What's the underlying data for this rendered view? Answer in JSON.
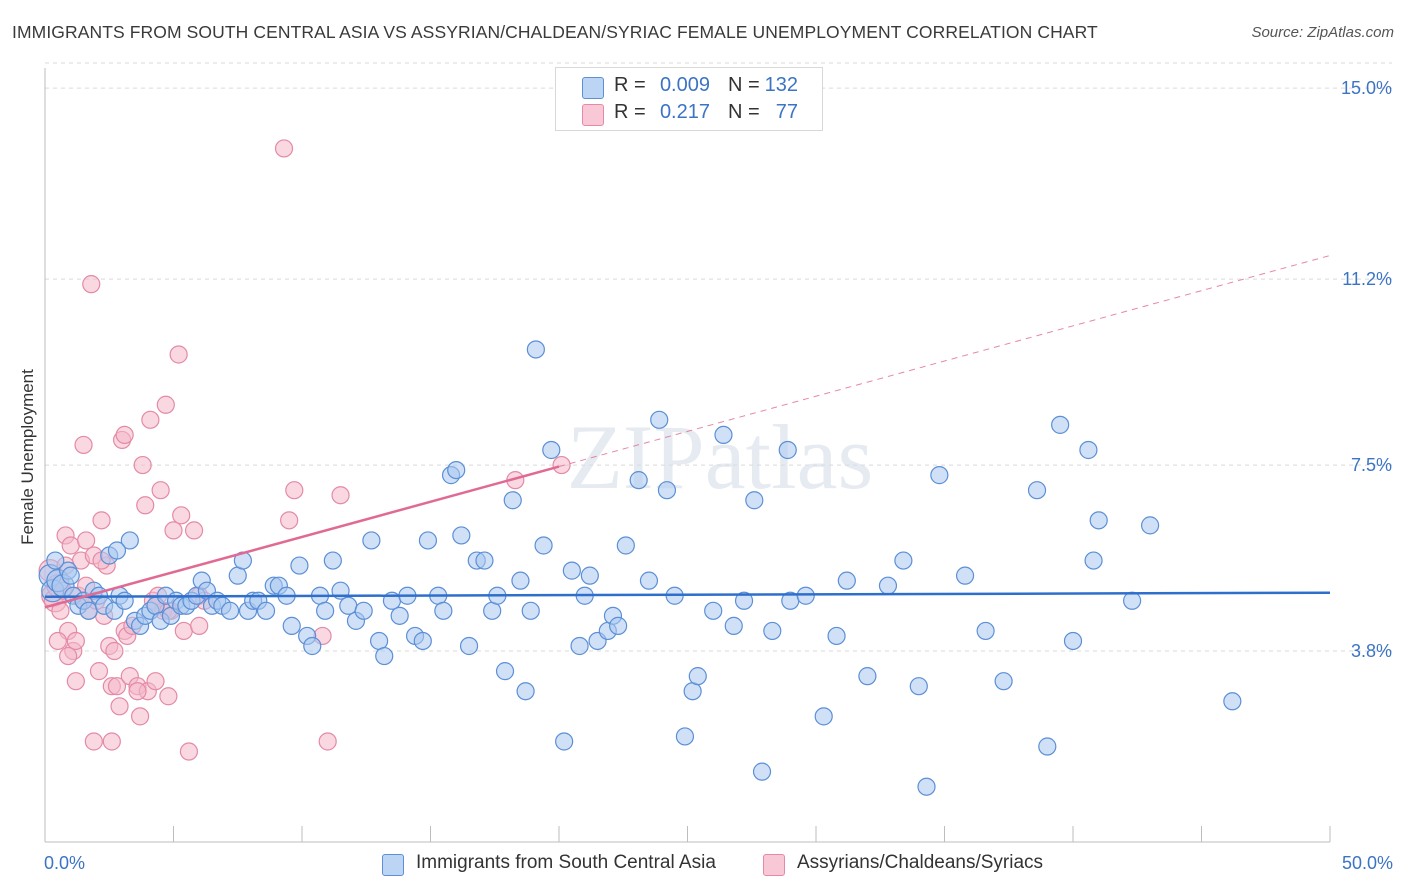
{
  "title": "IMMIGRANTS FROM SOUTH CENTRAL ASIA VS ASSYRIAN/CHALDEAN/SYRIAC FEMALE UNEMPLOYMENT CORRELATION CHART",
  "source": "Source: ZipAtlas.com",
  "watermark": "ZIPatlas",
  "colors": {
    "blue_fill": "#a9c8f0",
    "blue_stroke": "#5b8fd6",
    "blue_line": "#2f6fcc",
    "pink_fill": "#f4b8cb",
    "pink_stroke": "#e48aa6",
    "pink_line": "#e06a93",
    "tick_label": "#3b74c4",
    "grid": "#d9d9d9"
  },
  "legend": {
    "rows": [
      {
        "r_label": "R =",
        "r_value": "0.009",
        "n_label": "N =",
        "n_value": "132",
        "color": "blue"
      },
      {
        "r_label": "R =",
        "r_value": "0.217",
        "n_label": "N =",
        "n_value": "77",
        "color": "pink"
      }
    ]
  },
  "chart_data": {
    "type": "scatter",
    "title": "IMMIGRANTS FROM SOUTH CENTRAL ASIA VS ASSYRIAN/CHALDEAN/SYRIAC FEMALE UNEMPLOYMENT CORRELATION CHART",
    "xlabel": "",
    "ylabel": "Female Unemployment",
    "xlim": [
      0,
      50
    ],
    "ylim": [
      0,
      15.5
    ],
    "x_ticks": [
      "0.0%",
      "50.0%"
    ],
    "y_ticks": [
      {
        "value": 3.8,
        "label": "3.8%"
      },
      {
        "value": 7.5,
        "label": "7.5%"
      },
      {
        "value": 11.2,
        "label": "11.2%"
      },
      {
        "value": 15.0,
        "label": "15.0%"
      }
    ],
    "grid": true,
    "legend_position": "top-center",
    "series": [
      {
        "name": "Immigrants from South Central Asia",
        "color": "blue",
        "R": 0.009,
        "N": 132,
        "trend": {
          "x": [
            0,
            50
          ],
          "y": [
            4.88,
            4.96
          ]
        },
        "points": [
          [
            0.2,
            5.3
          ],
          [
            0.3,
            5.0
          ],
          [
            0.5,
            5.2
          ],
          [
            0.7,
            5.1
          ],
          [
            0.9,
            5.4
          ],
          [
            1.1,
            4.9
          ],
          [
            1.3,
            4.7
          ],
          [
            1.5,
            4.8
          ],
          [
            1.7,
            4.6
          ],
          [
            1.9,
            5.0
          ],
          [
            2.1,
            4.9
          ],
          [
            2.3,
            4.7
          ],
          [
            2.5,
            5.7
          ],
          [
            2.7,
            4.6
          ],
          [
            2.9,
            4.9
          ],
          [
            3.1,
            4.8
          ],
          [
            3.3,
            6.0
          ],
          [
            3.5,
            4.4
          ],
          [
            3.7,
            4.3
          ],
          [
            3.9,
            4.5
          ],
          [
            4.1,
            4.6
          ],
          [
            4.3,
            4.7
          ],
          [
            4.5,
            4.4
          ],
          [
            4.7,
            4.9
          ],
          [
            4.9,
            4.5
          ],
          [
            5.1,
            4.8
          ],
          [
            5.3,
            4.7
          ],
          [
            5.5,
            4.7
          ],
          [
            5.7,
            4.8
          ],
          [
            5.9,
            4.9
          ],
          [
            6.1,
            5.2
          ],
          [
            6.3,
            5.0
          ],
          [
            6.5,
            4.7
          ],
          [
            6.7,
            4.8
          ],
          [
            6.9,
            4.7
          ],
          [
            7.2,
            4.6
          ],
          [
            7.5,
            5.3
          ],
          [
            7.7,
            5.6
          ],
          [
            7.9,
            4.6
          ],
          [
            8.1,
            4.8
          ],
          [
            8.3,
            4.8
          ],
          [
            8.6,
            4.6
          ],
          [
            8.9,
            5.1
          ],
          [
            9.1,
            5.1
          ],
          [
            9.4,
            4.9
          ],
          [
            9.6,
            4.3
          ],
          [
            9.9,
            5.5
          ],
          [
            10.2,
            4.1
          ],
          [
            10.4,
            3.9
          ],
          [
            10.7,
            4.9
          ],
          [
            10.9,
            4.6
          ],
          [
            11.2,
            5.6
          ],
          [
            11.5,
            5.0
          ],
          [
            11.8,
            4.7
          ],
          [
            12.1,
            4.4
          ],
          [
            12.4,
            4.6
          ],
          [
            12.7,
            6.0
          ],
          [
            13.0,
            4.0
          ],
          [
            13.2,
            3.7
          ],
          [
            13.5,
            4.8
          ],
          [
            13.8,
            4.5
          ],
          [
            14.1,
            4.9
          ],
          [
            14.4,
            4.1
          ],
          [
            14.7,
            4.0
          ],
          [
            14.9,
            6.0
          ],
          [
            15.3,
            4.9
          ],
          [
            15.5,
            4.6
          ],
          [
            15.8,
            7.3
          ],
          [
            16.0,
            7.4
          ],
          [
            16.2,
            6.1
          ],
          [
            16.5,
            3.9
          ],
          [
            16.8,
            5.6
          ],
          [
            17.1,
            5.6
          ],
          [
            17.4,
            4.6
          ],
          [
            17.6,
            4.9
          ],
          [
            17.9,
            3.4
          ],
          [
            18.2,
            6.8
          ],
          [
            18.5,
            5.2
          ],
          [
            18.7,
            3.0
          ],
          [
            18.9,
            4.6
          ],
          [
            19.1,
            9.8
          ],
          [
            19.4,
            5.9
          ],
          [
            19.7,
            7.8
          ],
          [
            20.2,
            2.0
          ],
          [
            20.5,
            5.4
          ],
          [
            20.8,
            3.9
          ],
          [
            21.0,
            4.9
          ],
          [
            21.2,
            5.3
          ],
          [
            21.5,
            4.0
          ],
          [
            21.9,
            4.2
          ],
          [
            22.1,
            4.5
          ],
          [
            22.3,
            4.3
          ],
          [
            22.6,
            5.9
          ],
          [
            23.1,
            7.2
          ],
          [
            23.5,
            5.2
          ],
          [
            23.9,
            8.4
          ],
          [
            24.2,
            7.0
          ],
          [
            24.5,
            4.9
          ],
          [
            24.9,
            2.1
          ],
          [
            25.2,
            3.0
          ],
          [
            25.4,
            3.3
          ],
          [
            26.0,
            4.6
          ],
          [
            26.4,
            8.1
          ],
          [
            26.8,
            4.3
          ],
          [
            27.2,
            4.8
          ],
          [
            27.6,
            6.8
          ],
          [
            27.9,
            1.4
          ],
          [
            28.3,
            4.2
          ],
          [
            28.9,
            7.8
          ],
          [
            29.0,
            4.8
          ],
          [
            29.6,
            4.9
          ],
          [
            30.3,
            2.5
          ],
          [
            30.8,
            4.1
          ],
          [
            31.2,
            5.2
          ],
          [
            32.0,
            3.3
          ],
          [
            32.8,
            5.1
          ],
          [
            33.4,
            5.6
          ],
          [
            34.0,
            3.1
          ],
          [
            34.3,
            1.1
          ],
          [
            34.8,
            7.3
          ],
          [
            35.8,
            5.3
          ],
          [
            36.6,
            4.2
          ],
          [
            37.3,
            3.2
          ],
          [
            38.6,
            7.0
          ],
          [
            39.0,
            1.9
          ],
          [
            39.5,
            8.3
          ],
          [
            40.0,
            4.0
          ],
          [
            40.6,
            7.8
          ],
          [
            40.8,
            5.6
          ],
          [
            41.0,
            6.4
          ],
          [
            42.3,
            4.8
          ],
          [
            43.0,
            6.3
          ],
          [
            46.2,
            2.8
          ],
          [
            2.8,
            5.8
          ],
          [
            0.4,
            5.6
          ],
          [
            1.0,
            5.3
          ]
        ]
      },
      {
        "name": "Assyrians/Chaldeans/Syriacs",
        "color": "pink",
        "R": 0.217,
        "N": 77,
        "trend": {
          "x": [
            0,
            20
          ],
          "y": [
            4.67,
            7.47
          ],
          "dashed_to": {
            "x": 50,
            "y": 11.67
          }
        },
        "points": [
          [
            0.2,
            5.4
          ],
          [
            0.3,
            4.9
          ],
          [
            0.4,
            4.8
          ],
          [
            0.5,
            5.1
          ],
          [
            0.6,
            4.6
          ],
          [
            0.7,
            5.0
          ],
          [
            0.8,
            6.1
          ],
          [
            0.9,
            4.2
          ],
          [
            1.0,
            5.9
          ],
          [
            1.1,
            3.8
          ],
          [
            1.2,
            4.0
          ],
          [
            1.3,
            4.9
          ],
          [
            1.4,
            5.6
          ],
          [
            1.5,
            7.9
          ],
          [
            1.6,
            5.1
          ],
          [
            1.7,
            4.6
          ],
          [
            1.8,
            11.1
          ],
          [
            1.9,
            5.7
          ],
          [
            2.0,
            4.8
          ],
          [
            2.1,
            3.4
          ],
          [
            2.2,
            6.4
          ],
          [
            2.3,
            4.5
          ],
          [
            2.4,
            5.5
          ],
          [
            2.5,
            3.9
          ],
          [
            2.6,
            3.1
          ],
          [
            2.7,
            3.8
          ],
          [
            2.8,
            3.1
          ],
          [
            2.9,
            2.7
          ],
          [
            3.0,
            8.0
          ],
          [
            3.1,
            4.2
          ],
          [
            3.2,
            4.1
          ],
          [
            3.3,
            3.3
          ],
          [
            3.4,
            4.3
          ],
          [
            3.6,
            3.1
          ],
          [
            3.7,
            2.5
          ],
          [
            3.8,
            7.5
          ],
          [
            3.9,
            6.7
          ],
          [
            4.0,
            3.0
          ],
          [
            4.1,
            8.4
          ],
          [
            4.2,
            4.8
          ],
          [
            4.3,
            3.2
          ],
          [
            4.4,
            4.9
          ],
          [
            4.5,
            7.0
          ],
          [
            4.6,
            4.6
          ],
          [
            4.7,
            8.7
          ],
          [
            4.8,
            2.9
          ],
          [
            4.9,
            4.6
          ],
          [
            5.0,
            6.2
          ],
          [
            5.2,
            9.7
          ],
          [
            5.4,
            4.2
          ],
          [
            5.6,
            1.8
          ],
          [
            5.8,
            6.2
          ],
          [
            6.0,
            4.9
          ],
          [
            6.2,
            4.8
          ],
          [
            0.5,
            4.0
          ],
          [
            0.8,
            5.5
          ],
          [
            1.2,
            3.2
          ],
          [
            1.5,
            4.8
          ],
          [
            1.9,
            2.0
          ],
          [
            2.2,
            5.6
          ],
          [
            2.6,
            2.0
          ],
          [
            3.1,
            8.1
          ],
          [
            3.6,
            3.0
          ],
          [
            4.3,
            4.7
          ],
          [
            4.8,
            4.6
          ],
          [
            5.3,
            6.5
          ],
          [
            6.0,
            4.3
          ],
          [
            9.3,
            13.8
          ],
          [
            9.5,
            6.4
          ],
          [
            9.7,
            7.0
          ],
          [
            10.8,
            4.1
          ],
          [
            11.0,
            2.0
          ],
          [
            11.5,
            6.9
          ],
          [
            18.3,
            7.2
          ],
          [
            20.1,
            7.5
          ],
          [
            0.9,
            3.7
          ],
          [
            1.6,
            6.0
          ]
        ]
      }
    ]
  },
  "bottom_legend": [
    {
      "label": "Immigrants from South Central Asia",
      "color": "blue"
    },
    {
      "label": "Assyrians/Chaldeans/Syriacs",
      "color": "pink"
    }
  ]
}
